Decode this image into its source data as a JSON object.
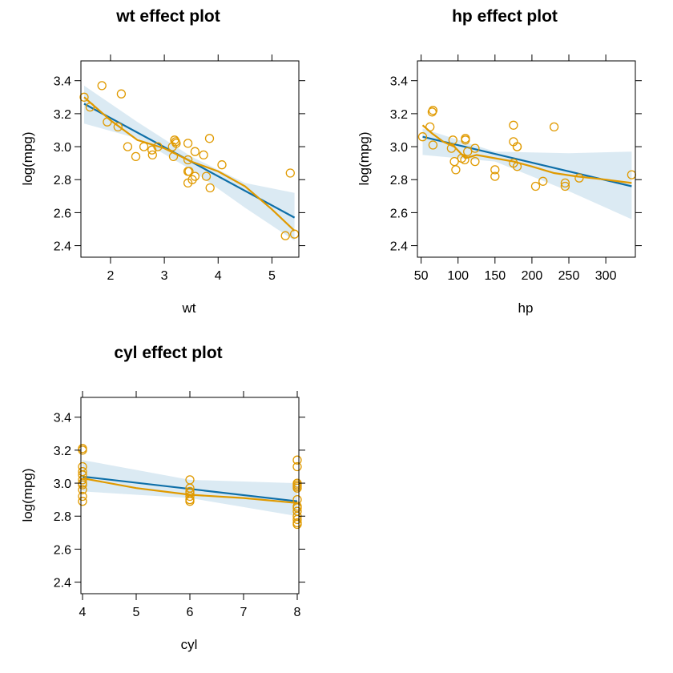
{
  "chart_data": [
    {
      "type": "scatter",
      "title": "wt effect plot",
      "xlabel": "wt",
      "ylabel": "log(mpg)",
      "xlim": [
        1.45,
        5.5
      ],
      "ylim": [
        2.33,
        3.52
      ],
      "xticks": [
        2,
        3,
        4,
        5
      ],
      "yticks": [
        2.4,
        2.6,
        2.8,
        3.0,
        3.2,
        3.4
      ],
      "ytick_labels": [
        "2.4",
        "2.6",
        "2.8",
        "3.0",
        "3.2",
        "3.4"
      ],
      "fit_line": [
        [
          1.51,
          3.26
        ],
        [
          5.42,
          2.57
        ]
      ],
      "confidence_band": {
        "upper": [
          [
            1.51,
            3.37
          ],
          [
            2.5,
            3.15
          ],
          [
            3.5,
            2.94
          ],
          [
            4.5,
            2.78
          ],
          [
            5.42,
            2.72
          ]
        ],
        "lower": [
          [
            1.51,
            3.14
          ],
          [
            2.5,
            3.05
          ],
          [
            3.5,
            2.86
          ],
          [
            4.5,
            2.63
          ],
          [
            5.42,
            2.43
          ]
        ]
      },
      "smooth_line": [
        [
          1.51,
          3.3
        ],
        [
          2.0,
          3.16
        ],
        [
          2.5,
          3.04
        ],
        [
          3.0,
          2.99
        ],
        [
          3.5,
          2.91
        ],
        [
          4.0,
          2.85
        ],
        [
          4.5,
          2.76
        ],
        [
          5.0,
          2.62
        ],
        [
          5.42,
          2.49
        ]
      ],
      "points": [
        [
          1.51,
          3.3
        ],
        [
          1.62,
          3.24
        ],
        [
          1.84,
          3.37
        ],
        [
          1.94,
          3.15
        ],
        [
          2.14,
          3.12
        ],
        [
          2.2,
          3.32
        ],
        [
          2.32,
          3.0
        ],
        [
          2.47,
          2.94
        ],
        [
          2.62,
          3.0
        ],
        [
          2.77,
          2.98
        ],
        [
          2.78,
          2.95
        ],
        [
          2.88,
          3.0
        ],
        [
          3.15,
          3.0
        ],
        [
          3.17,
          2.94
        ],
        [
          3.19,
          3.04
        ],
        [
          3.21,
          3.03
        ],
        [
          3.22,
          3.02
        ],
        [
          3.44,
          2.85
        ],
        [
          3.44,
          2.92
        ],
        [
          3.44,
          3.02
        ],
        [
          3.44,
          2.78
        ],
        [
          3.46,
          2.85
        ],
        [
          3.52,
          2.8
        ],
        [
          3.57,
          2.97
        ],
        [
          3.57,
          2.82
        ],
        [
          3.73,
          2.95
        ],
        [
          3.78,
          2.82
        ],
        [
          3.84,
          3.05
        ],
        [
          3.85,
          2.75
        ],
        [
          4.07,
          2.89
        ],
        [
          5.25,
          2.46
        ],
        [
          5.34,
          2.84
        ],
        [
          5.42,
          2.47
        ]
      ]
    },
    {
      "type": "scatter",
      "title": "hp effect plot",
      "xlabel": "hp",
      "ylabel": "log(mpg)",
      "xlim": [
        45,
        340
      ],
      "ylim": [
        2.33,
        3.52
      ],
      "xticks": [
        50,
        100,
        150,
        200,
        250,
        300
      ],
      "yticks": [
        2.4,
        2.6,
        2.8,
        3.0,
        3.2,
        3.4
      ],
      "ytick_labels": [
        "2.4",
        "2.6",
        "2.8",
        "3.0",
        "3.2",
        "3.4"
      ],
      "fit_line": [
        [
          52,
          3.06
        ],
        [
          335,
          2.76
        ]
      ],
      "confidence_band": {
        "upper": [
          [
            52,
            3.11
          ],
          [
            150,
            2.97
          ],
          [
            250,
            2.96
          ],
          [
            335,
            2.97
          ]
        ],
        "lower": [
          [
            52,
            2.95
          ],
          [
            150,
            2.91
          ],
          [
            250,
            2.73
          ],
          [
            335,
            2.56
          ]
        ]
      },
      "smooth_line": [
        [
          52,
          3.13
        ],
        [
          65,
          3.08
        ],
        [
          80,
          3.03
        ],
        [
          95,
          3.0
        ],
        [
          110,
          2.93
        ],
        [
          125,
          2.95
        ],
        [
          150,
          2.93
        ],
        [
          175,
          2.91
        ],
        [
          200,
          2.88
        ],
        [
          230,
          2.84
        ],
        [
          260,
          2.82
        ],
        [
          300,
          2.8
        ],
        [
          335,
          2.78
        ]
      ],
      "points": [
        [
          52,
          3.06
        ],
        [
          62,
          3.12
        ],
        [
          65,
          3.21
        ],
        [
          66,
          3.22
        ],
        [
          66,
          3.01
        ],
        [
          91,
          2.99
        ],
        [
          93,
          3.04
        ],
        [
          95,
          2.91
        ],
        [
          97,
          2.86
        ],
        [
          105,
          2.93
        ],
        [
          109,
          2.92
        ],
        [
          110,
          3.05
        ],
        [
          110,
          3.04
        ],
        [
          113,
          2.97
        ],
        [
          123,
          2.91
        ],
        [
          123,
          2.99
        ],
        [
          150,
          2.82
        ],
        [
          150,
          2.86
        ],
        [
          175,
          3.13
        ],
        [
          175,
          2.9
        ],
        [
          175,
          3.03
        ],
        [
          180,
          3.0
        ],
        [
          180,
          3.0
        ],
        [
          180,
          2.88
        ],
        [
          205,
          2.76
        ],
        [
          215,
          2.79
        ],
        [
          230,
          3.12
        ],
        [
          245,
          2.76
        ],
        [
          245,
          2.78
        ],
        [
          264,
          2.81
        ],
        [
          335,
          2.83
        ]
      ]
    },
    {
      "type": "scatter",
      "title": "cyl effect plot",
      "xlabel": "cyl",
      "ylabel": "log(mpg)",
      "xlim": [
        3.97,
        8.03
      ],
      "ylim": [
        2.33,
        3.52
      ],
      "xticks": [
        4,
        5,
        6,
        7,
        8
      ],
      "yticks": [
        2.4,
        2.6,
        2.8,
        3.0,
        3.2,
        3.4
      ],
      "ytick_labels": [
        "2.4",
        "2.6",
        "2.8",
        "3.0",
        "3.2",
        "3.4"
      ],
      "fit_line": [
        [
          4,
          3.04
        ],
        [
          8,
          2.89
        ]
      ],
      "confidence_band": {
        "upper": [
          [
            4,
            3.14
          ],
          [
            6,
            3.02
          ],
          [
            8,
            3.0
          ]
        ],
        "lower": [
          [
            4,
            2.95
          ],
          [
            6,
            2.91
          ],
          [
            8,
            2.8
          ]
        ]
      },
      "smooth_line": [
        [
          4,
          3.03
        ],
        [
          5,
          2.97
        ],
        [
          6,
          2.93
        ],
        [
          7,
          2.91
        ],
        [
          8,
          2.88
        ]
      ],
      "points": [
        [
          4,
          3.21
        ],
        [
          4,
          3.2
        ],
        [
          4,
          3.1
        ],
        [
          4,
          3.07
        ],
        [
          4,
          3.05
        ],
        [
          4,
          3.0
        ],
        [
          4,
          2.99
        ],
        [
          4,
          2.96
        ],
        [
          4,
          2.92
        ],
        [
          4,
          2.89
        ],
        [
          4,
          3.02
        ],
        [
          6,
          3.02
        ],
        [
          6,
          2.97
        ],
        [
          6,
          2.95
        ],
        [
          6,
          2.92
        ],
        [
          6,
          2.9
        ],
        [
          6,
          2.89
        ],
        [
          6,
          2.94
        ],
        [
          8,
          3.14
        ],
        [
          8,
          3.1
        ],
        [
          8,
          3.0
        ],
        [
          8,
          2.98
        ],
        [
          8,
          2.97
        ],
        [
          8,
          2.9
        ],
        [
          8,
          2.86
        ],
        [
          8,
          2.83
        ],
        [
          8,
          2.8
        ],
        [
          8,
          2.78
        ],
        [
          8,
          2.76
        ],
        [
          8,
          2.75
        ],
        [
          8,
          2.99
        ],
        [
          8,
          2.85
        ]
      ]
    }
  ]
}
